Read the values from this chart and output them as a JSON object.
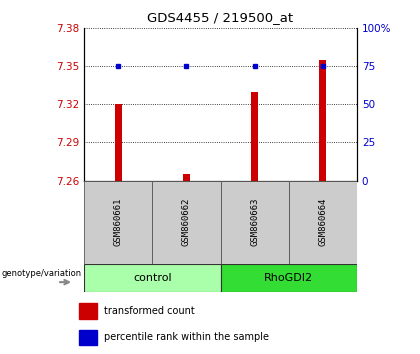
{
  "title": "GDS4455 / 219500_at",
  "samples": [
    "GSM860661",
    "GSM860662",
    "GSM860663",
    "GSM860664"
  ],
  "red_values": [
    7.32,
    7.265,
    7.33,
    7.355
  ],
  "blue_pcts": [
    75.5,
    75.5,
    75.5,
    75.5
  ],
  "ylim_left": [
    7.26,
    7.38
  ],
  "ylim_right": [
    0,
    100
  ],
  "yticks_left": [
    7.26,
    7.29,
    7.32,
    7.35,
    7.38
  ],
  "yticks_right": [
    0,
    25,
    50,
    75,
    100
  ],
  "ytick_labels_left": [
    "7.26",
    "7.29",
    "7.32",
    "7.35",
    "7.38"
  ],
  "ytick_labels_right": [
    "0",
    "25",
    "50",
    "75",
    "100%"
  ],
  "groups": [
    {
      "label": "control",
      "samples": [
        0,
        1
      ],
      "color": "#aaffaa"
    },
    {
      "label": "RhoGDI2",
      "samples": [
        2,
        3
      ],
      "color": "#33dd33"
    }
  ],
  "genotype_label": "genotype/variation",
  "legend_items": [
    {
      "label": "transformed count",
      "color": "#cc0000"
    },
    {
      "label": "percentile rank within the sample",
      "color": "#0000cc"
    }
  ],
  "bar_color": "#cc0000",
  "dot_color": "#0000cc",
  "label_color_left": "#cc0000",
  "label_color_right": "#0000cc",
  "bar_bottom": 7.26,
  "bar_width": 0.1
}
